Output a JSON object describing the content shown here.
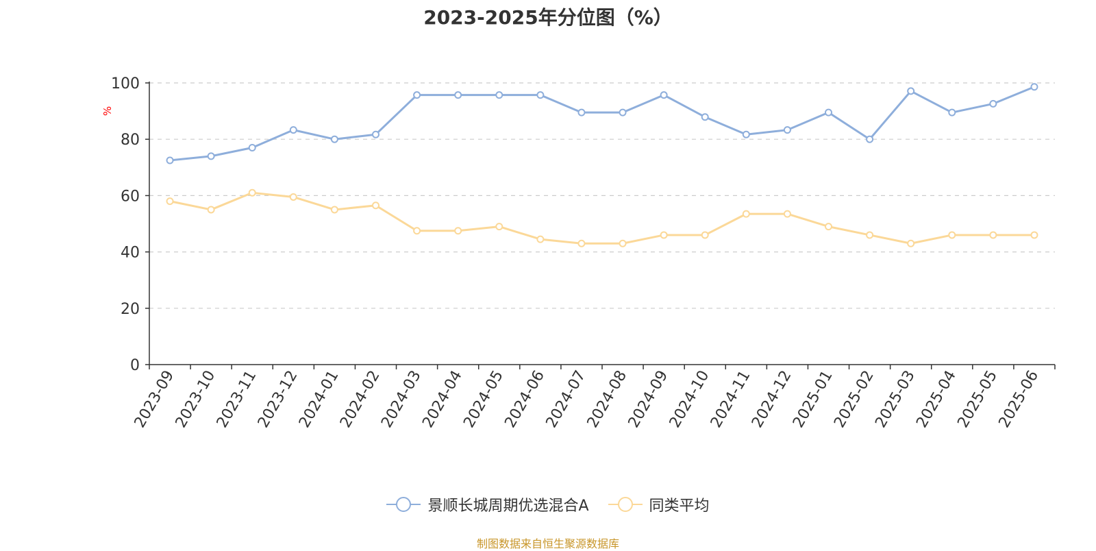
{
  "chart_data": {
    "type": "line",
    "title": "2023-2025年分位图（%）",
    "ylabel": "%",
    "xlabel": "",
    "ylim": [
      0,
      100
    ],
    "yticks": [
      0,
      20,
      40,
      60,
      80,
      100
    ],
    "grid": true,
    "legend_position": "bottom",
    "categories": [
      "2023-09",
      "2023-10",
      "2023-11",
      "2023-12",
      "2024-01",
      "2024-02",
      "2024-03",
      "2024-04",
      "2024-05",
      "2024-06",
      "2024-07",
      "2024-08",
      "2024-09",
      "2024-10",
      "2024-11",
      "2024-12",
      "2025-01",
      "2025-02",
      "2025-03",
      "2025-04",
      "2025-05",
      "2025-06"
    ],
    "series": [
      {
        "name": "景顺长城周期优选混合A",
        "color": "#8eaedb",
        "values": [
          72.5,
          74.0,
          77.0,
          83.3,
          80.0,
          81.7,
          95.7,
          95.7,
          95.7,
          95.7,
          89.5,
          89.5,
          95.7,
          87.9,
          81.7,
          83.3,
          89.5,
          80.0,
          97.1,
          89.5,
          92.6,
          98.6
        ]
      },
      {
        "name": "同类平均",
        "color": "#fbd898",
        "values": [
          58.0,
          55.0,
          61.0,
          59.5,
          55.0,
          56.5,
          47.5,
          47.5,
          49.0,
          44.5,
          43.0,
          43.0,
          46.0,
          46.0,
          53.5,
          53.5,
          49.0,
          46.0,
          43.0,
          46.0,
          46.0,
          46.0
        ]
      }
    ]
  },
  "footer": {
    "source": "制图数据来自恒生聚源数据库"
  },
  "colors": {
    "axis": "#333333",
    "grid": "#cccccc",
    "ylabel": "#ff0000",
    "source": "#c8962a"
  }
}
